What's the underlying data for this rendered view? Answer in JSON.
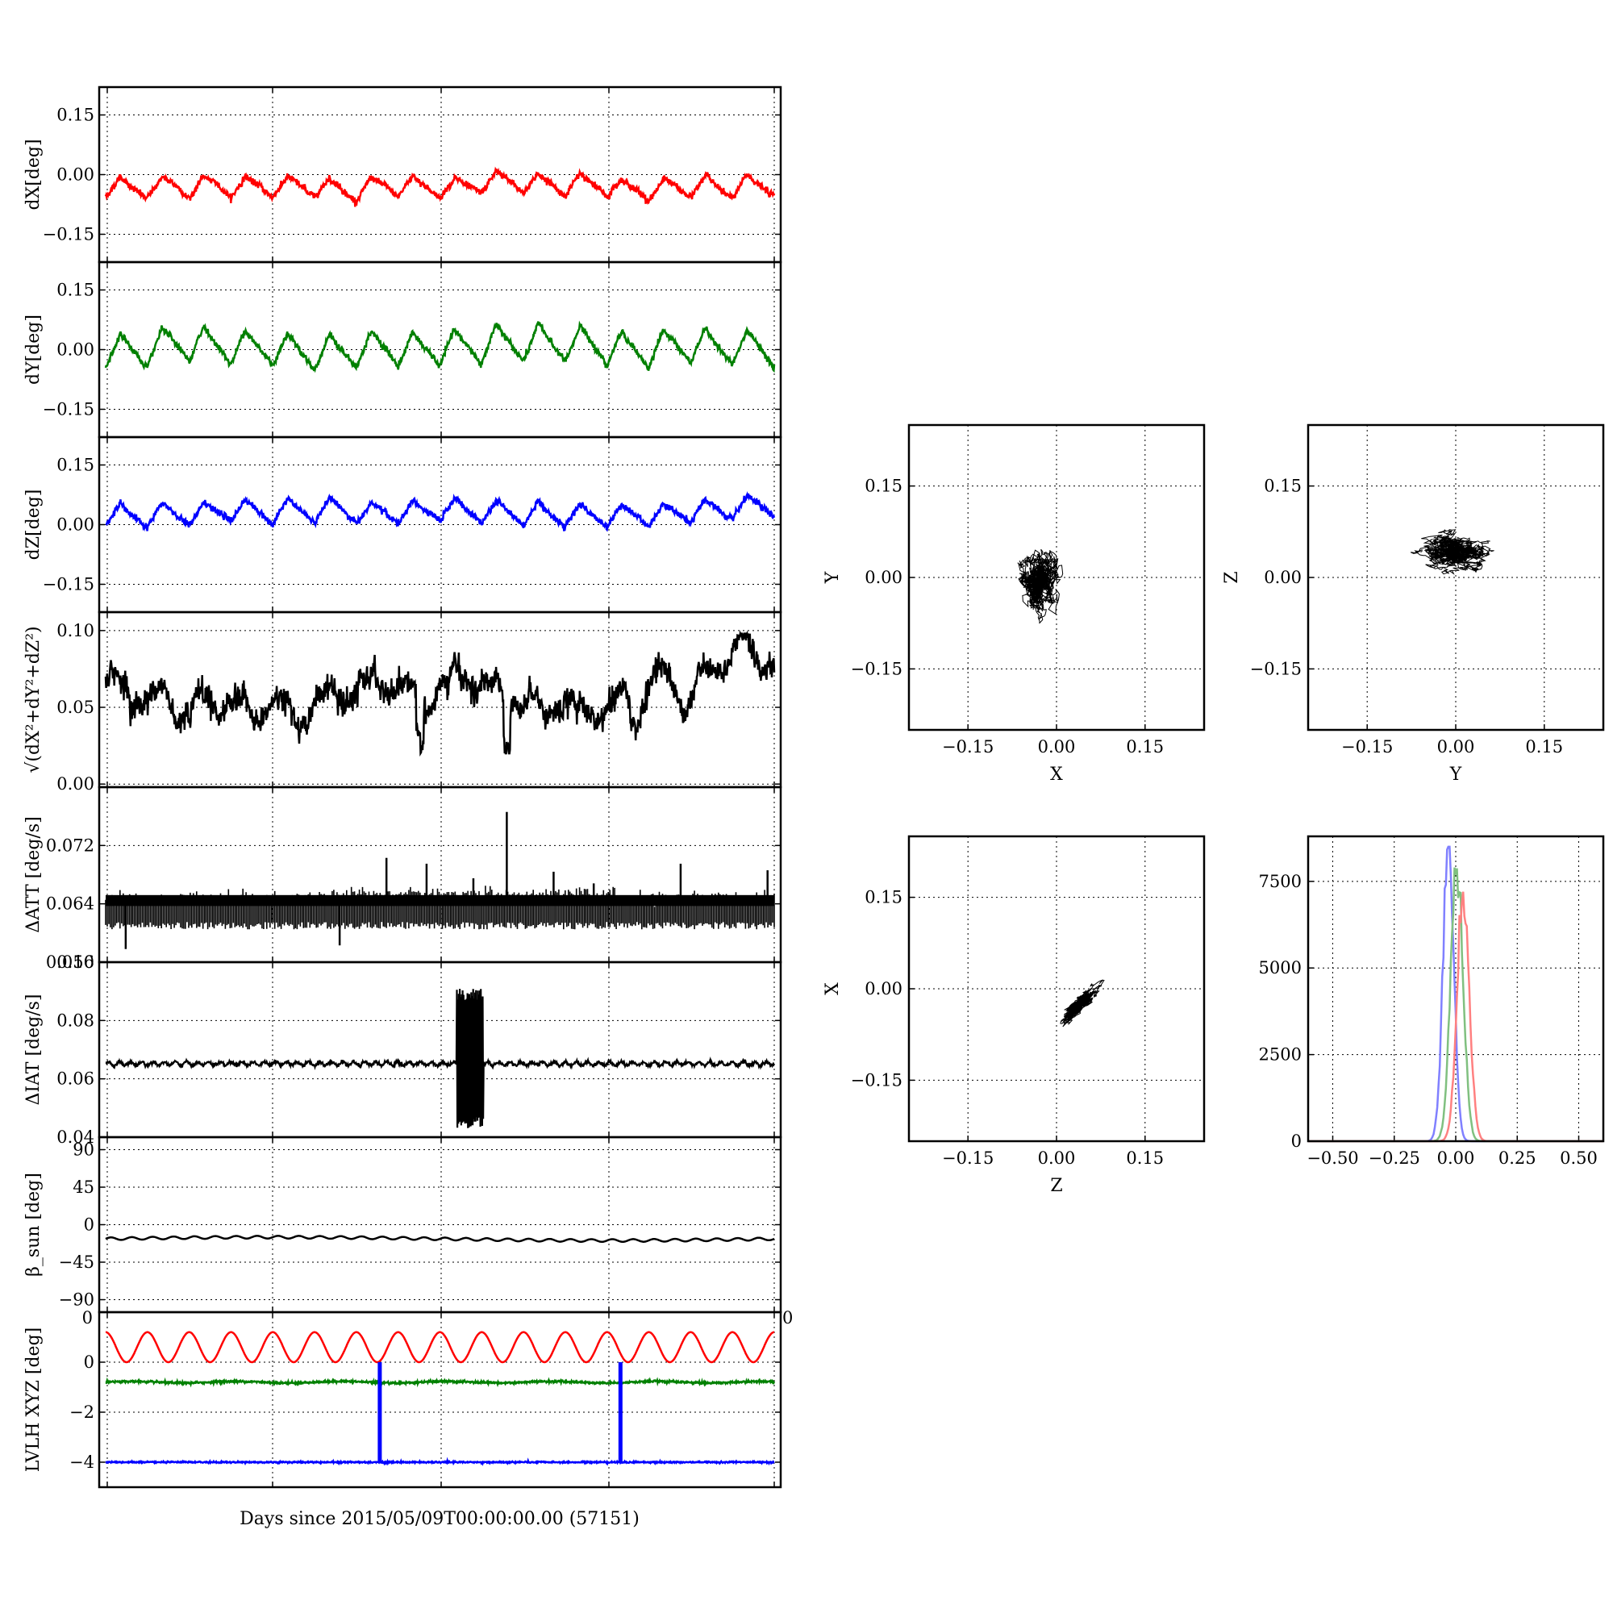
{
  "figure": {
    "xlabel": "Days since 2015/05/09T00:00:00.00 (57151)"
  },
  "chart_data": [
    {
      "type": "line",
      "id": "dX",
      "ylabel": "dX[deg]",
      "yticks": [
        "0.15",
        "0.00",
        "−0.15"
      ],
      "ylim": [
        -0.22,
        0.22
      ],
      "series": [
        {
          "color": "#ff0000",
          "description": "quasi-periodic oscillation around -0.03 with ~16 cycles, amplitude ~0.03"
        }
      ]
    },
    {
      "type": "line",
      "id": "dY",
      "ylabel": "dY[deg]",
      "yticks": [
        "0.15",
        "0.00",
        "−0.15"
      ],
      "ylim": [
        -0.22,
        0.22
      ],
      "series": [
        {
          "color": "#008000",
          "description": "quasi-periodic oscillation around 0.00 with ~16 cycles, amplitude ~0.05"
        }
      ]
    },
    {
      "type": "line",
      "id": "dZ",
      "ylabel": "dZ[deg]",
      "yticks": [
        "0.15",
        "0.00",
        "−0.15"
      ],
      "ylim": [
        -0.22,
        0.22
      ],
      "series": [
        {
          "color": "#0000ff",
          "description": "quasi-periodic oscillation around 0.03 with ~16 cycles, amplitude ~0.03"
        }
      ]
    },
    {
      "type": "line",
      "id": "R",
      "ylabel": "√(dX²+dY²+dZ²)",
      "yticks": [
        "0.10",
        "0.05",
        "0.00"
      ],
      "ylim": [
        -0.002,
        0.112
      ],
      "series": [
        {
          "color": "#000000",
          "description": "noisy signal mostly between 0.04 and 0.09"
        }
      ]
    },
    {
      "type": "line",
      "id": "ATT",
      "ylabel": "ΔATT [deg/s]",
      "yticks": [
        "0.072",
        "0.064",
        "0.056"
      ],
      "ylim": [
        0.056,
        0.08
      ],
      "series": [
        {
          "color": "#000000",
          "description": "baseline ~0.064 with dense downward spikes to ~0.061 and isolated upward spikes up to ~0.077"
        }
      ]
    },
    {
      "type": "line",
      "id": "IAT",
      "ylabel": "ΔIAT [deg/s]",
      "yticks": [
        "0.10",
        "0.08",
        "0.06",
        "0.04"
      ],
      "ylim": [
        0.04,
        0.1
      ],
      "series": [
        {
          "color": "#000000",
          "description": "steady ~0.065 with a large oscillation burst (0.042–0.091) around x≈0.52"
        }
      ]
    },
    {
      "type": "line",
      "id": "beta",
      "ylabel": "β_sun [deg]",
      "yticks": [
        "90",
        "45",
        "0",
        "−45",
        "−90"
      ],
      "ylim": [
        -105,
        105
      ],
      "series": [
        {
          "color": "#000000",
          "description": "nearly constant around -17 with small oscillation"
        }
      ]
    },
    {
      "type": "line",
      "id": "lvlh",
      "ylabel": "LVLH XYZ [deg]",
      "yticks": [
        "0",
        "−2",
        "−4"
      ],
      "extra_ticks": [
        "0",
        "0"
      ],
      "ylim": [
        -5,
        2
      ],
      "series": [
        {
          "color": "#ff0000",
          "description": "sinusoid between 0 and 1.2, ~16 cycles"
        },
        {
          "color": "#008000",
          "description": "flat at about -0.8"
        },
        {
          "color": "#0000ff",
          "description": "flat at about -4, two vertical spikes up to 0 at x≈0.41 and x≈0.77"
        }
      ]
    },
    {
      "type": "scatter",
      "id": "XY",
      "xlabel": "X",
      "ylabel": "Y",
      "xticks": [
        "−0.15",
        "0.00",
        "0.15"
      ],
      "yticks": [
        "0.15",
        "0.00",
        "−0.15"
      ],
      "xlim": [
        -0.25,
        0.25
      ],
      "ylim": [
        -0.25,
        0.25
      ],
      "cluster": {
        "cx": -0.03,
        "cy": -0.01,
        "sx": 0.022,
        "sy": 0.03,
        "color": "#000000"
      }
    },
    {
      "type": "scatter",
      "id": "YZ",
      "xlabel": "Y",
      "ylabel": "Z",
      "xticks": [
        "−0.15",
        "0.00",
        "0.15"
      ],
      "yticks": [
        "0.15",
        "0.00",
        "−0.15"
      ],
      "xlim": [
        -0.25,
        0.25
      ],
      "ylim": [
        -0.25,
        0.25
      ],
      "cluster": {
        "cx": 0.0,
        "cy": 0.04,
        "sx": 0.035,
        "sy": 0.018,
        "color": "#000000"
      }
    },
    {
      "type": "scatter",
      "id": "ZX",
      "xlabel": "Z",
      "ylabel": "X",
      "xticks": [
        "−0.15",
        "0.00",
        "0.15"
      ],
      "yticks": [
        "0.15",
        "0.00",
        "−0.15"
      ],
      "xlim": [
        -0.25,
        0.25
      ],
      "ylim": [
        -0.25,
        0.25
      ],
      "cluster": {
        "cx": 0.035,
        "cy": -0.03,
        "sx": 0.02,
        "sy": 0.02,
        "color": "#000000",
        "correlated": true
      }
    },
    {
      "type": "histogram",
      "id": "hist",
      "xticks": [
        "−0.50",
        "−0.25",
        "0.00",
        "0.25",
        "0.50"
      ],
      "yticks": [
        "7500",
        "5000",
        "2500",
        "0"
      ],
      "xlim": [
        -0.6,
        0.6
      ],
      "ylim": [
        0,
        8800
      ],
      "series": [
        {
          "color": "#8080ff",
          "center": -0.03,
          "width": 0.022,
          "peak": 8500
        },
        {
          "color": "#80c080",
          "center": 0.005,
          "width": 0.025,
          "peak": 7900
        },
        {
          "color": "#ff8080",
          "center": 0.03,
          "width": 0.025,
          "peak": 7200
        }
      ]
    }
  ]
}
